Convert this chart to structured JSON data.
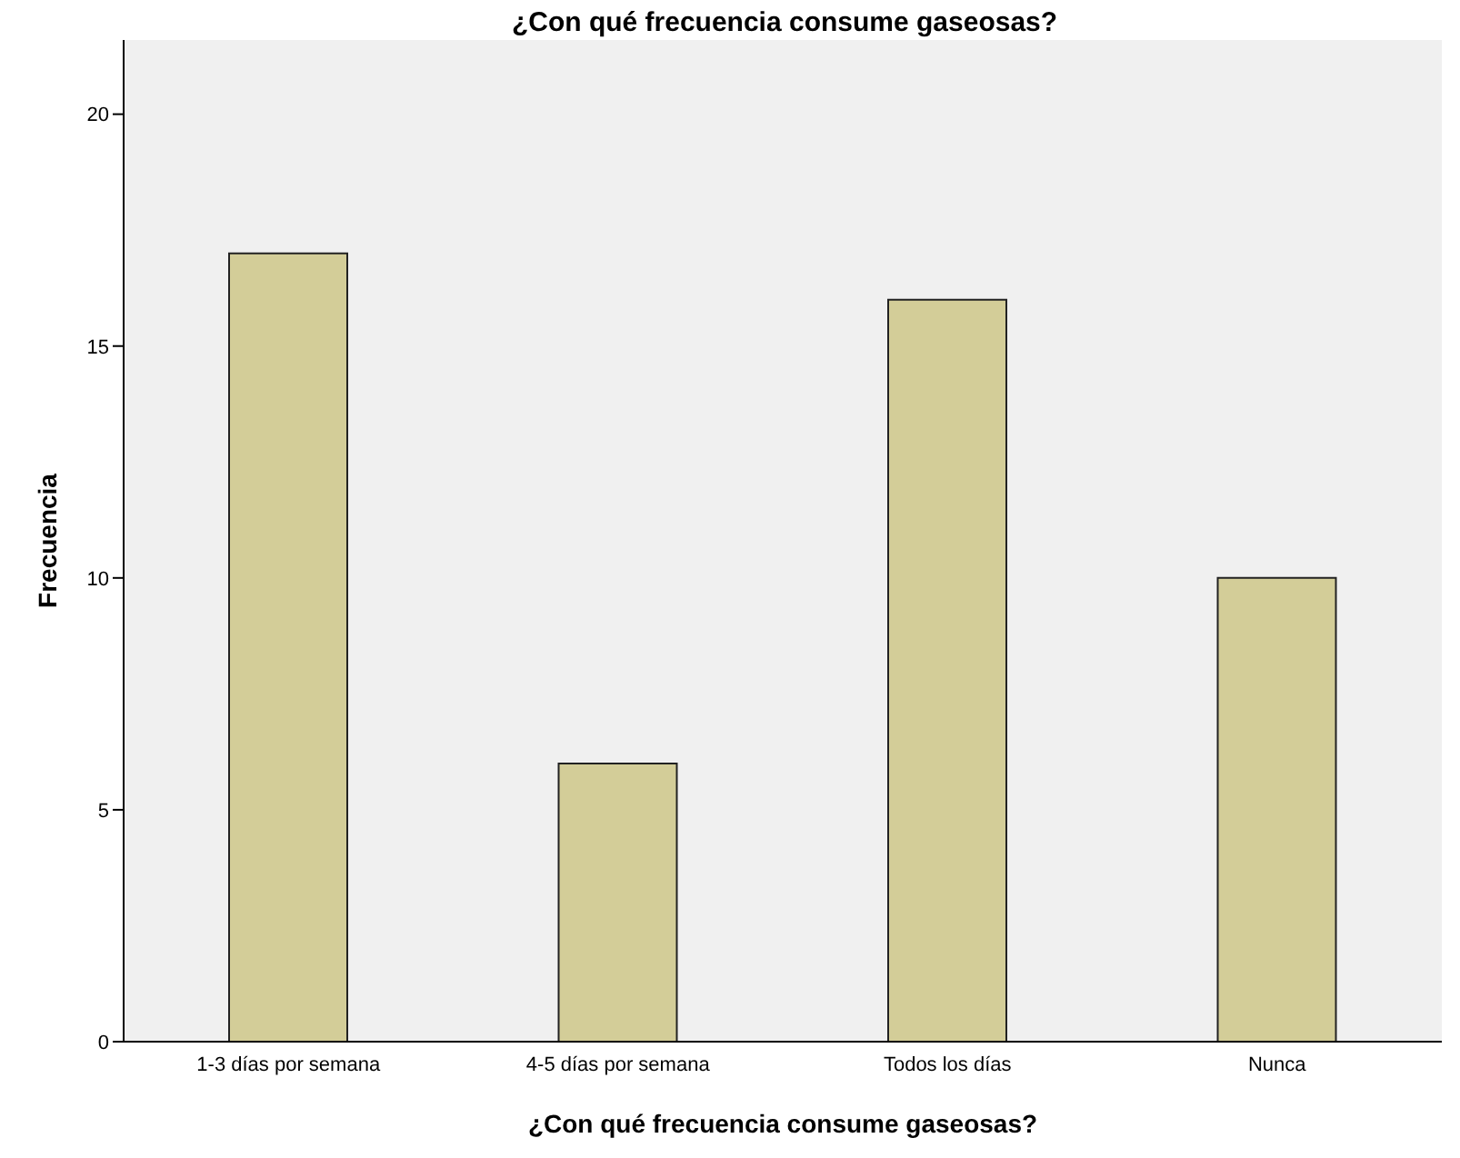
{
  "chart_data": {
    "type": "bar",
    "title": "¿Con qué frecuencia consume gaseosas?",
    "xlabel": "¿Con qué frecuencia consume gaseosas?",
    "ylabel": "Frecuencia",
    "categories": [
      "1-3 días por semana",
      "4-5 días por semana",
      "Todos los días",
      "Nunca"
    ],
    "values": [
      17,
      6,
      16,
      10
    ],
    "color": "#d3cd98",
    "ylim": [
      0,
      21.6
    ],
    "yticks": [
      0,
      5,
      10,
      15,
      20
    ]
  }
}
